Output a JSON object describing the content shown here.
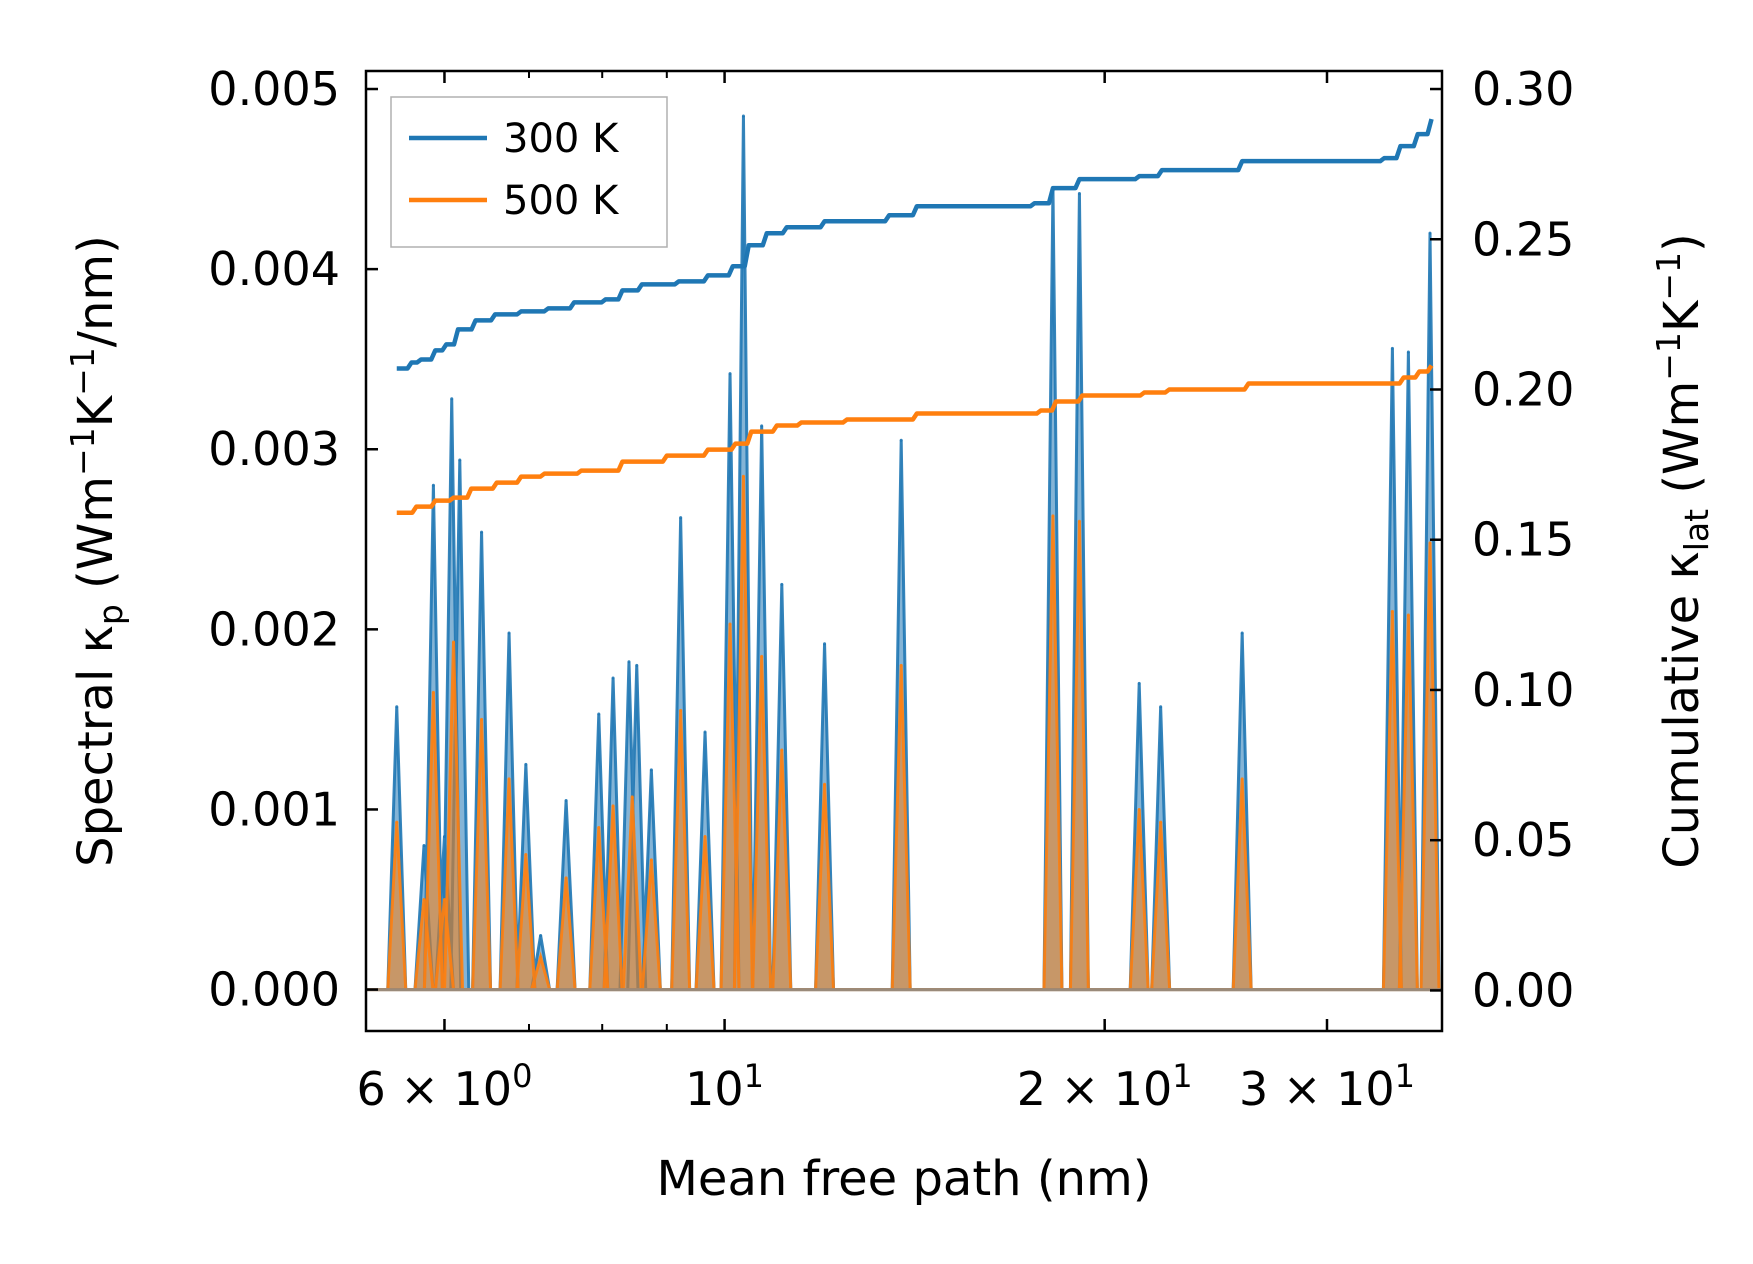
{
  "chart_data": {
    "type": "line",
    "xscale": "log",
    "xlabel": "Mean free path (nm)",
    "ylabel_left": {
      "main": "Spectral κ",
      "sub": "p",
      "unit_parts": [
        " (Wm",
        "−1",
        "K",
        "−1",
        "/nm)"
      ]
    },
    "ylabel_right": {
      "main": "Cumulative κ",
      "sub": "lat",
      "unit_parts": [
        " (Wm",
        "−1",
        "K",
        "−1",
        ")"
      ]
    },
    "xlim": [
      5.2,
      37.0
    ],
    "ylim_left": [
      -0.00023,
      0.0051
    ],
    "ylim_right": [
      -0.0135,
      0.306
    ],
    "xticks": [
      {
        "value": 6,
        "label": "6 × 10",
        "exp": "0"
      },
      {
        "value": 10,
        "label": "10",
        "exp": "1"
      },
      {
        "value": 20,
        "label": "2 × 10",
        "exp": "1"
      },
      {
        "value": 30,
        "label": "3 × 10",
        "exp": "1"
      }
    ],
    "yticks_left": [
      {
        "value": 0.0,
        "label": "0.000"
      },
      {
        "value": 0.001,
        "label": "0.001"
      },
      {
        "value": 0.002,
        "label": "0.002"
      },
      {
        "value": 0.003,
        "label": "0.003"
      },
      {
        "value": 0.004,
        "label": "0.004"
      },
      {
        "value": 0.005,
        "label": "0.005"
      }
    ],
    "yticks_right": [
      {
        "value": 0.0,
        "label": "0.00"
      },
      {
        "value": 0.05,
        "label": "0.05"
      },
      {
        "value": 0.1,
        "label": "0.10"
      },
      {
        "value": 0.15,
        "label": "0.15"
      },
      {
        "value": 0.2,
        "label": "0.20"
      },
      {
        "value": 0.25,
        "label": "0.25"
      },
      {
        "value": 0.3,
        "label": "0.30"
      }
    ],
    "legend": {
      "position": "upper-left",
      "entries": [
        "300 K",
        "500 K"
      ]
    },
    "series": [
      {
        "name": "300 K",
        "color": "#1f77b4",
        "spectral_peaks": [
          [
            5.5,
            0.00157
          ],
          [
            5.78,
            0.0008
          ],
          [
            5.88,
            0.0028
          ],
          [
            6.0,
            0.00085
          ],
          [
            6.08,
            0.00328
          ],
          [
            6.17,
            0.00294
          ],
          [
            6.42,
            0.00254
          ],
          [
            6.75,
            0.00198
          ],
          [
            6.96,
            0.00125
          ],
          [
            7.15,
            0.0003
          ],
          [
            7.49,
            0.00105
          ],
          [
            7.95,
            0.00153
          ],
          [
            8.16,
            0.00173
          ],
          [
            8.4,
            0.00182
          ],
          [
            8.52,
            0.0018
          ],
          [
            8.75,
            0.00122
          ],
          [
            9.23,
            0.00262
          ],
          [
            9.65,
            0.00143
          ],
          [
            10.1,
            0.00342
          ],
          [
            10.35,
            0.00485
          ],
          [
            10.7,
            0.00313
          ],
          [
            11.1,
            0.00225
          ],
          [
            12.0,
            0.00192
          ],
          [
            13.8,
            0.00305
          ],
          [
            18.2,
            0.00445
          ],
          [
            19.1,
            0.00442
          ],
          [
            21.3,
            0.0017
          ],
          [
            22.15,
            0.00157
          ],
          [
            25.7,
            0.00198
          ],
          [
            33.8,
            0.00356
          ],
          [
            34.8,
            0.00354
          ],
          [
            36.2,
            0.0042
          ]
        ],
        "cumulative": [
          [
            5.5,
            0.207
          ],
          [
            5.65,
            0.209
          ],
          [
            5.75,
            0.21
          ],
          [
            5.9,
            0.213
          ],
          [
            6.02,
            0.215
          ],
          [
            6.15,
            0.22
          ],
          [
            6.35,
            0.223
          ],
          [
            6.58,
            0.225
          ],
          [
            6.9,
            0.226
          ],
          [
            7.25,
            0.227
          ],
          [
            7.6,
            0.229
          ],
          [
            8.05,
            0.23
          ],
          [
            8.3,
            0.233
          ],
          [
            8.6,
            0.235
          ],
          [
            9.2,
            0.236
          ],
          [
            9.7,
            0.238
          ],
          [
            10.15,
            0.241
          ],
          [
            10.45,
            0.248
          ],
          [
            10.8,
            0.252
          ],
          [
            11.2,
            0.254
          ],
          [
            12.0,
            0.256
          ],
          [
            13.5,
            0.258
          ],
          [
            14.2,
            0.261
          ],
          [
            17.6,
            0.262
          ],
          [
            18.2,
            0.267
          ],
          [
            19.1,
            0.27
          ],
          [
            21.3,
            0.271
          ],
          [
            22.2,
            0.273
          ],
          [
            25.7,
            0.276
          ],
          [
            33.3,
            0.277
          ],
          [
            34.3,
            0.281
          ],
          [
            35.4,
            0.285
          ],
          [
            36.3,
            0.29
          ]
        ]
      },
      {
        "name": "500 K",
        "color": "#ff7f0e",
        "spectral_peaks": [
          [
            5.5,
            0.00093
          ],
          [
            5.78,
            0.0005
          ],
          [
            5.88,
            0.00165
          ],
          [
            6.0,
            0.0005
          ],
          [
            6.1,
            0.00193
          ],
          [
            6.42,
            0.0015
          ],
          [
            6.75,
            0.00117
          ],
          [
            6.96,
            0.00075
          ],
          [
            7.15,
            0.00018
          ],
          [
            7.49,
            0.00062
          ],
          [
            7.95,
            0.0009
          ],
          [
            8.16,
            0.00102
          ],
          [
            8.45,
            0.00107
          ],
          [
            8.75,
            0.00072
          ],
          [
            9.23,
            0.00155
          ],
          [
            9.65,
            0.00085
          ],
          [
            10.1,
            0.00203
          ],
          [
            10.35,
            0.00285
          ],
          [
            10.7,
            0.00185
          ],
          [
            11.1,
            0.00133
          ],
          [
            12.0,
            0.00114
          ],
          [
            13.8,
            0.0018
          ],
          [
            18.2,
            0.00263
          ],
          [
            19.1,
            0.0026
          ],
          [
            21.3,
            0.001
          ],
          [
            22.15,
            0.00093
          ],
          [
            25.7,
            0.00117
          ],
          [
            33.8,
            0.0021
          ],
          [
            34.8,
            0.00208
          ],
          [
            36.2,
            0.00248
          ]
        ],
        "cumulative": [
          [
            5.5,
            0.159
          ],
          [
            5.7,
            0.161
          ],
          [
            5.9,
            0.163
          ],
          [
            6.1,
            0.164
          ],
          [
            6.3,
            0.167
          ],
          [
            6.6,
            0.169
          ],
          [
            6.9,
            0.171
          ],
          [
            7.2,
            0.172
          ],
          [
            7.7,
            0.173
          ],
          [
            8.3,
            0.176
          ],
          [
            9.0,
            0.178
          ],
          [
            9.7,
            0.18
          ],
          [
            10.2,
            0.182
          ],
          [
            10.5,
            0.186
          ],
          [
            11.0,
            0.188
          ],
          [
            11.5,
            0.189
          ],
          [
            12.5,
            0.19
          ],
          [
            14.2,
            0.192
          ],
          [
            17.8,
            0.193
          ],
          [
            18.3,
            0.196
          ],
          [
            19.2,
            0.198
          ],
          [
            21.5,
            0.199
          ],
          [
            22.5,
            0.2
          ],
          [
            26.0,
            0.202
          ],
          [
            33.5,
            0.202
          ],
          [
            34.5,
            0.204
          ],
          [
            35.5,
            0.206
          ],
          [
            36.3,
            0.208
          ]
        ]
      }
    ]
  }
}
